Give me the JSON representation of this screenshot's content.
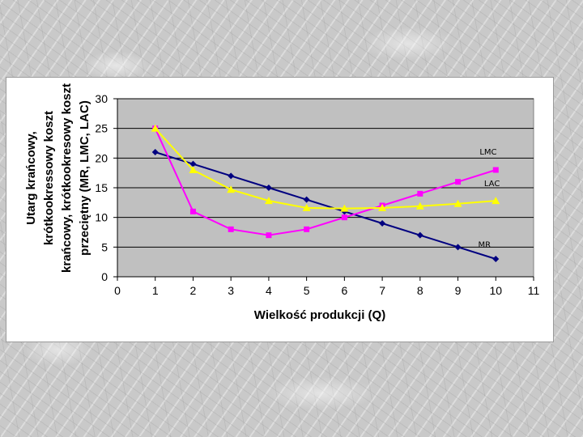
{
  "chart_data": {
    "type": "line",
    "title": "",
    "xlabel": "Wielkość produkcji (Q)",
    "ylabel_lines": [
      "Utarg krańcowy,",
      "krótkookressowy koszt",
      "krańcowy, krótkookresowy koszt",
      "przeciętny (MR, LMC, LAC)"
    ],
    "xlim": [
      0,
      11
    ],
    "ylim": [
      0,
      30
    ],
    "x_ticks": [
      "0",
      "1",
      "2",
      "3",
      "4",
      "5",
      "6",
      "7",
      "8",
      "9",
      "10",
      "11"
    ],
    "y_ticks": [
      "0",
      "5",
      "10",
      "15",
      "20",
      "25",
      "30"
    ],
    "x_tick_values": [
      0,
      1,
      2,
      3,
      4,
      5,
      6,
      7,
      8,
      9,
      10,
      11
    ],
    "y_tick_values": [
      0,
      5,
      10,
      15,
      20,
      25,
      30
    ],
    "grid": true,
    "plot_background": "#c0c0c0",
    "series": [
      {
        "name": "MR",
        "color": "#000080",
        "marker": "diamond",
        "x": [
          1,
          2,
          3,
          4,
          5,
          6,
          7,
          8,
          9,
          10
        ],
        "y": [
          21,
          19,
          17,
          15,
          13,
          11,
          9,
          7,
          5,
          3
        ],
        "label_x": 9.7,
        "label_y": 5.0
      },
      {
        "name": "LMC",
        "color": "#ff00ff",
        "marker": "square",
        "x": [
          1,
          2,
          3,
          4,
          5,
          6,
          7,
          8,
          9,
          10
        ],
        "y": [
          25,
          11,
          8,
          7,
          8,
          10,
          12,
          14,
          16,
          18
        ],
        "label_x": 9.8,
        "label_y": 20.6
      },
      {
        "name": "LAC",
        "color": "#ffff00",
        "marker": "triangle",
        "x": [
          1,
          2,
          3,
          4,
          5,
          6,
          7,
          8,
          9,
          10
        ],
        "y": [
          25,
          18,
          14.7,
          12.8,
          11.6,
          11.5,
          11.6,
          11.9,
          12.3,
          12.8
        ],
        "label_x": 9.9,
        "label_y": 15.3
      }
    ]
  }
}
